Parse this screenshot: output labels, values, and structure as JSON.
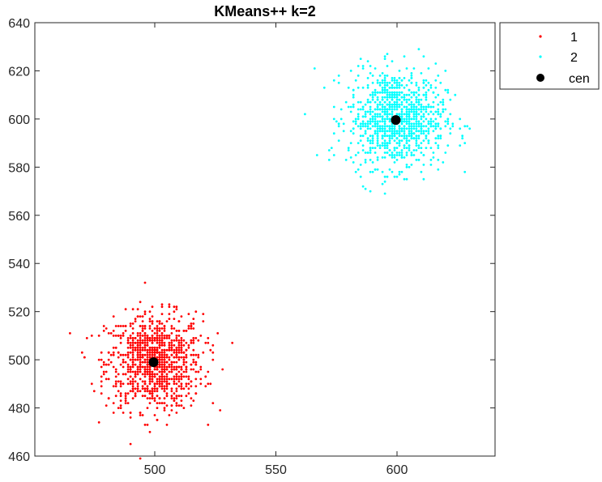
{
  "chart_data": {
    "type": "scatter",
    "title": "KMeans++ k=2",
    "xlabel": "",
    "ylabel": "",
    "xlim": [
      450,
      590
    ],
    "ylim": [
      460,
      640
    ],
    "xticks": [
      500,
      550,
      600
    ],
    "yticks": [
      460,
      480,
      500,
      520,
      540,
      560,
      580,
      600,
      620,
      640
    ],
    "grid": false,
    "legend_position": "outside-top-right",
    "series": [
      {
        "name": "1",
        "color": "#ff0000",
        "marker": "dot",
        "distribution": {
          "center": [
            500,
            499
          ],
          "spread": [
            10,
            10
          ],
          "count": 1000,
          "points_note_free": true
        },
        "points": []
      },
      {
        "name": "2",
        "color": "#00ffff",
        "marker": "dot",
        "distribution": {
          "center": [
            600,
            600
          ],
          "spread": [
            10,
            10
          ],
          "count": 1000
        },
        "points": []
      },
      {
        "name": "cen",
        "color": "#000000",
        "marker": "filled-circle",
        "points": [
          [
            499.5,
            499.0
          ],
          [
            599.5,
            599.6
          ]
        ]
      }
    ]
  }
}
